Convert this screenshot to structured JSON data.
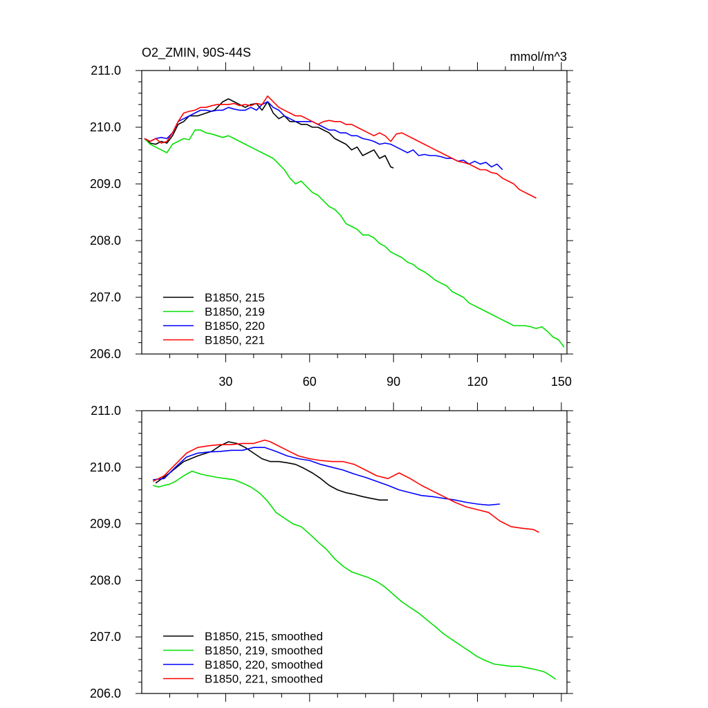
{
  "chart_data": [
    {
      "type": "line",
      "title": "O2_ZMIN, 90S-44S",
      "units": "mmol/m^3",
      "xlim": [
        0,
        152
      ],
      "ylim": [
        206.0,
        211.0
      ],
      "yticks": [
        "211.0",
        "210.0",
        "209.0",
        "208.0",
        "207.0",
        "206.0"
      ],
      "xticks": [
        "30",
        "60",
        "90",
        "120",
        "150"
      ],
      "grid": false,
      "legend_position": "bottom-left",
      "series": [
        {
          "name": "B1850, 215",
          "color": "#000000",
          "x": [
            1,
            3,
            5,
            7,
            9,
            11,
            13,
            15,
            17,
            20,
            23,
            26,
            29,
            31,
            33,
            35,
            37,
            39,
            41,
            43,
            45,
            47,
            49,
            51,
            53,
            55,
            57,
            59,
            61,
            63,
            65,
            67,
            69,
            71,
            73,
            75,
            77,
            79,
            81,
            83,
            85,
            87,
            89,
            90
          ],
          "y": [
            209.8,
            209.72,
            209.7,
            209.75,
            209.72,
            209.85,
            210.05,
            210.1,
            210.2,
            210.2,
            210.25,
            210.3,
            210.45,
            210.5,
            210.45,
            210.4,
            210.35,
            210.4,
            210.42,
            210.3,
            210.45,
            210.25,
            210.15,
            210.2,
            210.1,
            210.1,
            210.05,
            210.05,
            210.0,
            210.0,
            209.95,
            209.9,
            209.8,
            209.75,
            209.7,
            209.6,
            209.65,
            209.5,
            209.55,
            209.6,
            209.45,
            209.5,
            209.3,
            209.28
          ]
        },
        {
          "name": "B1850, 219",
          "color": "#00e000",
          "x": [
            1,
            3,
            5,
            7,
            9,
            11,
            13,
            15,
            17,
            19,
            21,
            23,
            25,
            27,
            29,
            31,
            33,
            35,
            37,
            39,
            41,
            43,
            45,
            47,
            49,
            51,
            53,
            55,
            57,
            59,
            61,
            63,
            65,
            67,
            69,
            71,
            73,
            75,
            77,
            79,
            81,
            83,
            85,
            87,
            89,
            91,
            93,
            95,
            97,
            99,
            101,
            103,
            105,
            107,
            109,
            111,
            113,
            115,
            117,
            119,
            121,
            123,
            125,
            127,
            129,
            131,
            133,
            135,
            137,
            139,
            141,
            143,
            145,
            147,
            149,
            151
          ],
          "y": [
            209.8,
            209.7,
            209.65,
            209.6,
            209.55,
            209.7,
            209.75,
            209.8,
            209.78,
            209.95,
            209.95,
            209.9,
            209.88,
            209.85,
            209.82,
            209.85,
            209.8,
            209.75,
            209.7,
            209.65,
            209.6,
            209.55,
            209.5,
            209.45,
            209.35,
            209.25,
            209.1,
            209.0,
            209.05,
            208.95,
            208.85,
            208.8,
            208.7,
            208.6,
            208.55,
            208.45,
            208.3,
            208.25,
            208.2,
            208.1,
            208.1,
            208.05,
            207.95,
            207.9,
            207.8,
            207.75,
            207.7,
            207.62,
            207.58,
            207.5,
            207.45,
            207.38,
            207.3,
            207.25,
            207.2,
            207.1,
            207.05,
            207.0,
            206.9,
            206.85,
            206.8,
            206.75,
            206.7,
            206.65,
            206.6,
            206.55,
            206.5,
            206.5,
            206.5,
            206.48,
            206.45,
            206.48,
            206.4,
            206.3,
            206.25,
            206.12
          ]
        },
        {
          "name": "B1850, 220",
          "color": "#0000ff",
          "x": [
            1,
            3,
            5,
            7,
            9,
            11,
            13,
            15,
            17,
            19,
            21,
            23,
            25,
            27,
            29,
            31,
            33,
            35,
            37,
            39,
            41,
            43,
            45,
            47,
            49,
            51,
            53,
            55,
            57,
            59,
            61,
            63,
            65,
            67,
            69,
            71,
            73,
            75,
            77,
            79,
            81,
            83,
            85,
            87,
            89,
            91,
            93,
            95,
            97,
            99,
            101,
            103,
            105,
            107,
            109,
            111,
            113,
            115,
            117,
            119,
            121,
            123,
            125,
            127,
            129
          ],
          "y": [
            209.8,
            209.75,
            209.8,
            209.82,
            209.8,
            209.9,
            210.1,
            210.15,
            210.2,
            210.25,
            210.3,
            210.3,
            210.28,
            210.3,
            210.3,
            210.35,
            210.32,
            210.3,
            210.3,
            210.35,
            210.3,
            210.4,
            210.45,
            210.35,
            210.3,
            210.2,
            210.15,
            210.1,
            210.1,
            210.1,
            210.1,
            210.05,
            210.0,
            209.95,
            209.95,
            209.9,
            209.9,
            209.85,
            209.85,
            209.8,
            209.78,
            209.75,
            209.7,
            209.72,
            209.7,
            209.65,
            209.6,
            209.55,
            209.6,
            209.5,
            209.52,
            209.5,
            209.5,
            209.48,
            209.45,
            209.45,
            209.4,
            209.42,
            209.35,
            209.4,
            209.35,
            209.38,
            209.3,
            209.35,
            209.25
          ]
        },
        {
          "name": "B1850, 221",
          "color": "#ff0000",
          "x": [
            1,
            3,
            5,
            7,
            9,
            11,
            13,
            15,
            17,
            19,
            21,
            23,
            25,
            27,
            29,
            31,
            33,
            35,
            37,
            39,
            41,
            43,
            45,
            47,
            49,
            51,
            53,
            55,
            57,
            59,
            61,
            63,
            65,
            67,
            69,
            71,
            73,
            75,
            77,
            79,
            81,
            83,
            85,
            87,
            89,
            91,
            93,
            95,
            97,
            99,
            101,
            103,
            105,
            107,
            109,
            111,
            113,
            115,
            117,
            119,
            121,
            123,
            125,
            127,
            129,
            131,
            133,
            135,
            137,
            139,
            141
          ],
          "y": [
            209.8,
            209.75,
            209.8,
            209.72,
            209.75,
            209.9,
            210.1,
            210.25,
            210.28,
            210.3,
            210.35,
            210.35,
            210.38,
            210.4,
            210.4,
            210.4,
            210.42,
            210.38,
            210.4,
            210.38,
            210.42,
            210.4,
            210.55,
            210.45,
            210.35,
            210.3,
            210.25,
            210.2,
            210.2,
            210.15,
            210.1,
            210.05,
            210.1,
            210.12,
            210.1,
            210.1,
            210.05,
            210.05,
            210.0,
            209.95,
            209.9,
            209.85,
            209.9,
            209.85,
            209.75,
            209.88,
            209.9,
            209.85,
            209.8,
            209.75,
            209.7,
            209.65,
            209.6,
            209.55,
            209.5,
            209.45,
            209.4,
            209.38,
            209.35,
            209.3,
            209.25,
            209.25,
            209.2,
            209.18,
            209.1,
            209.05,
            209.0,
            208.9,
            208.85,
            208.8,
            208.75
          ]
        }
      ]
    },
    {
      "type": "line",
      "xlim": [
        0,
        152
      ],
      "ylim": [
        206.0,
        211.0
      ],
      "yticks": [
        "211.0",
        "210.0",
        "209.0",
        "208.0",
        "207.0",
        "206.0"
      ],
      "grid": false,
      "legend_position": "bottom-left",
      "series": [
        {
          "name": "B1850, 215, smoothed",
          "color": "#000000",
          "x": [
            5,
            10,
            15,
            20,
            25,
            28,
            31,
            34,
            37,
            40,
            43,
            46,
            49,
            52,
            55,
            58,
            61,
            64,
            67,
            70,
            73,
            76,
            79,
            82,
            85,
            88
          ],
          "y": [
            209.72,
            209.9,
            210.1,
            210.2,
            210.28,
            210.38,
            210.45,
            210.42,
            210.35,
            210.25,
            210.15,
            210.1,
            210.1,
            210.08,
            210.05,
            209.98,
            209.9,
            209.8,
            209.68,
            209.6,
            209.55,
            209.52,
            209.48,
            209.45,
            209.42,
            209.42
          ]
        },
        {
          "name": "B1850, 219, smoothed",
          "color": "#00e000",
          "x": [
            4,
            6,
            8,
            10,
            12,
            15,
            18,
            21,
            24,
            27,
            30,
            33,
            36,
            39,
            42,
            45,
            48,
            51,
            54,
            57,
            60,
            63,
            66,
            69,
            72,
            75,
            78,
            81,
            84,
            87,
            90,
            93,
            96,
            99,
            102,
            105,
            108,
            111,
            114,
            117,
            120,
            123,
            126,
            129,
            132,
            135,
            138,
            141,
            144,
            146,
            148
          ],
          "y": [
            209.68,
            209.65,
            209.68,
            209.7,
            209.75,
            209.85,
            209.93,
            209.88,
            209.85,
            209.82,
            209.8,
            209.78,
            209.72,
            209.65,
            209.55,
            209.4,
            209.2,
            209.1,
            209.0,
            208.95,
            208.82,
            208.68,
            208.55,
            208.38,
            208.25,
            208.15,
            208.1,
            208.05,
            207.98,
            207.88,
            207.75,
            207.62,
            207.52,
            207.42,
            207.3,
            207.18,
            207.05,
            206.95,
            206.85,
            206.75,
            206.65,
            206.58,
            206.52,
            206.5,
            206.48,
            206.48,
            206.45,
            206.42,
            206.38,
            206.32,
            206.25
          ]
        },
        {
          "name": "B1850, 220, smoothed",
          "color": "#0000ff",
          "x": [
            4,
            8,
            12,
            16,
            20,
            24,
            28,
            32,
            36,
            40,
            44,
            48,
            52,
            56,
            60,
            64,
            68,
            72,
            76,
            80,
            84,
            88,
            92,
            96,
            100,
            104,
            108,
            112,
            116,
            120,
            124,
            128
          ],
          "y": [
            209.78,
            209.8,
            210.0,
            210.18,
            210.25,
            210.27,
            210.28,
            210.3,
            210.3,
            210.35,
            210.35,
            210.28,
            210.2,
            210.15,
            210.12,
            210.05,
            210.0,
            209.95,
            209.88,
            209.82,
            209.75,
            209.68,
            209.6,
            209.55,
            209.5,
            209.48,
            209.45,
            209.42,
            209.38,
            209.35,
            209.33,
            209.35
          ]
        },
        {
          "name": "B1850, 221, smoothed",
          "color": "#ff0000",
          "x": [
            4,
            8,
            12,
            16,
            20,
            24,
            28,
            32,
            36,
            40,
            44,
            46,
            48,
            52,
            56,
            60,
            64,
            68,
            72,
            76,
            80,
            84,
            88,
            92,
            96,
            100,
            104,
            108,
            112,
            116,
            120,
            124,
            128,
            132,
            136,
            140,
            142
          ],
          "y": [
            209.75,
            209.85,
            210.05,
            210.25,
            210.35,
            210.38,
            210.4,
            210.4,
            210.42,
            210.42,
            210.48,
            210.45,
            210.4,
            210.3,
            210.2,
            210.15,
            210.12,
            210.1,
            210.1,
            210.05,
            209.95,
            209.85,
            209.8,
            209.9,
            209.8,
            209.68,
            209.58,
            209.48,
            209.38,
            209.3,
            209.25,
            209.2,
            209.05,
            208.95,
            208.92,
            208.9,
            208.85
          ]
        }
      ]
    }
  ]
}
